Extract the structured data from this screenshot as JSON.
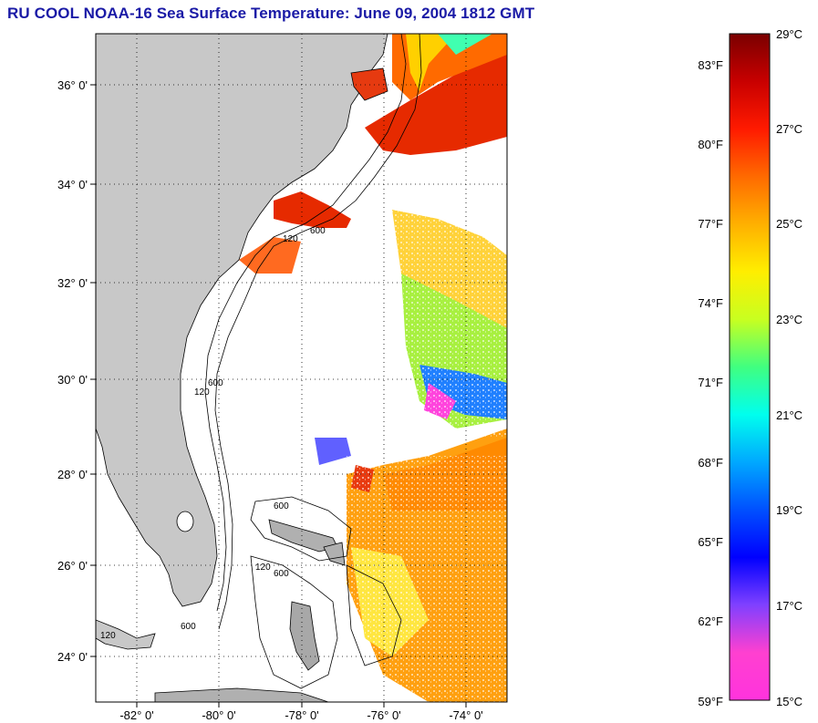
{
  "title": "RU COOL  NOAA-16  Sea Surface Temperature:  June 09, 2004 1812 GMT",
  "map": {
    "lat_ticks": [
      "36° 0'",
      "34° 0'",
      "32° 0'",
      "30° 0'",
      "28° 0'",
      "26° 0'",
      "24° 0'"
    ],
    "lon_ticks": [
      "-82° 0'",
      "-80° 0'",
      "-78° 0'",
      "-76° 0'",
      "-74° 0'"
    ],
    "contour_labels": [
      "120",
      "600",
      "120",
      "600",
      "600",
      "120",
      "600",
      "120",
      "600"
    ],
    "land_color": "#c8c8c8",
    "cloud_color": "#ffffff"
  },
  "colorbar": {
    "celsius_labels": [
      "29°C",
      "27°C",
      "25°C",
      "23°C",
      "21°C",
      "19°C",
      "17°C",
      "15°C"
    ],
    "fahrenheit_labels": [
      "83°F",
      "80°F",
      "77°F",
      "74°F",
      "71°F",
      "68°F",
      "65°F",
      "62°F",
      "59°F"
    ],
    "min_c": 15,
    "max_c": 29,
    "gradient_stops": [
      "#7a0000",
      "#c80000",
      "#ff1a00",
      "#ff6a00",
      "#ffb000",
      "#ffee00",
      "#c8ff20",
      "#40ff80",
      "#00ffee",
      "#00a8ff",
      "#0050ff",
      "#0000ff",
      "#8040ff",
      "#ff40d0",
      "#ff33dd"
    ]
  }
}
